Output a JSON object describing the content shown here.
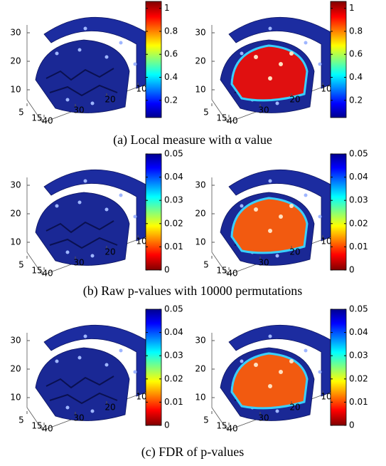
{
  "rows": [
    {
      "caption": "(a) Local measure with α value",
      "plots": [
        {
          "z_ticks": [
            10,
            20,
            30
          ],
          "x_ticks": [
            5,
            15
          ],
          "y_ticks": [
            40,
            30,
            20,
            10
          ],
          "colorbar": {
            "colormap": "jet",
            "reversed": false,
            "lim": [
              0.05,
              1.06
            ],
            "ticks": [
              0.2,
              0.4,
              0.6,
              0.8,
              1
            ]
          },
          "highlight": null
        },
        {
          "z_ticks": [
            10,
            20,
            30
          ],
          "x_ticks": [
            5,
            15
          ],
          "y_ticks": [
            40,
            30,
            20,
            10
          ],
          "colorbar": {
            "colormap": "jet",
            "reversed": false,
            "lim": [
              0.05,
              1.06
            ],
            "ticks": [
              0.2,
              0.4,
              0.6,
              0.8,
              1
            ]
          },
          "highlight": "#e01010"
        }
      ]
    },
    {
      "caption": "(b) Raw p-values with 10000 permutations",
      "plots": [
        {
          "z_ticks": [
            10,
            20,
            30
          ],
          "x_ticks": [
            5,
            15
          ],
          "y_ticks": [
            40,
            30,
            20,
            10
          ],
          "colorbar": {
            "colormap": "jet",
            "reversed": true,
            "lim": [
              0,
              0.05
            ],
            "ticks": [
              0,
              0.01,
              0.02,
              0.03,
              0.04,
              0.05
            ]
          },
          "highlight": null
        },
        {
          "z_ticks": [
            10,
            20,
            30
          ],
          "x_ticks": [
            5,
            15
          ],
          "y_ticks": [
            40,
            30,
            20,
            10
          ],
          "colorbar": {
            "colormap": "jet",
            "reversed": true,
            "lim": [
              0,
              0.05
            ],
            "ticks": [
              0,
              0.01,
              0.02,
              0.03,
              0.04,
              0.05
            ]
          },
          "highlight": "#f25a10"
        }
      ]
    },
    {
      "caption": "(c) FDR of p-values",
      "plots": [
        {
          "z_ticks": [
            10,
            20,
            30
          ],
          "x_ticks": [
            5,
            15
          ],
          "y_ticks": [
            40,
            30,
            20,
            10
          ],
          "colorbar": {
            "colormap": "jet",
            "reversed": true,
            "lim": [
              0,
              0.05
            ],
            "ticks": [
              0,
              0.01,
              0.02,
              0.03,
              0.04,
              0.05
            ]
          },
          "highlight": null
        },
        {
          "z_ticks": [
            10,
            20,
            30
          ],
          "x_ticks": [
            5,
            15
          ],
          "y_ticks": [
            40,
            30,
            20,
            10
          ],
          "colorbar": {
            "colormap": "jet",
            "reversed": true,
            "lim": [
              0,
              0.05
            ],
            "ticks": [
              0,
              0.01,
              0.02,
              0.03,
              0.04,
              0.05
            ]
          },
          "highlight": "#f25a10"
        }
      ]
    }
  ]
}
